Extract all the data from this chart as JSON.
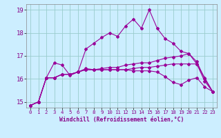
{
  "xlabel": "Windchill (Refroidissement éolien,°C)",
  "bg_color": "#cceeff",
  "grid_color": "#99cccc",
  "line_color": "#990099",
  "x_labels": [
    "0",
    "1",
    "2",
    "3",
    "4",
    "5",
    "6",
    "7",
    "8",
    "9",
    "10",
    "11",
    "12",
    "13",
    "14",
    "15",
    "16",
    "17",
    "18",
    "19",
    "20",
    "21",
    "22",
    "23"
  ],
  "ylim": [
    14.75,
    19.25
  ],
  "yticks": [
    15,
    16,
    17,
    18,
    19
  ],
  "series": [
    [
      14.85,
      15.0,
      16.05,
      16.7,
      16.6,
      16.15,
      16.3,
      16.45,
      16.4,
      16.4,
      16.4,
      16.4,
      16.4,
      16.35,
      16.35,
      16.35,
      16.3,
      16.1,
      15.85,
      15.75,
      15.95,
      16.05,
      15.65,
      15.45
    ],
    [
      14.85,
      15.0,
      16.05,
      16.05,
      16.2,
      16.2,
      16.3,
      17.3,
      17.55,
      17.8,
      18.0,
      17.85,
      18.3,
      18.6,
      18.2,
      19.0,
      18.2,
      17.75,
      17.55,
      17.2,
      17.1,
      16.65,
      16.05,
      15.45
    ],
    [
      14.85,
      15.0,
      16.05,
      16.05,
      16.2,
      16.2,
      16.3,
      16.4,
      16.4,
      16.45,
      16.5,
      16.5,
      16.6,
      16.65,
      16.7,
      16.7,
      16.8,
      16.9,
      16.95,
      17.0,
      17.1,
      16.75,
      16.0,
      15.45
    ],
    [
      14.85,
      15.0,
      16.05,
      16.05,
      16.2,
      16.2,
      16.3,
      16.4,
      16.4,
      16.4,
      16.4,
      16.4,
      16.4,
      16.45,
      16.5,
      16.5,
      16.55,
      16.6,
      16.65,
      16.65,
      16.65,
      16.65,
      15.9,
      15.45
    ]
  ]
}
